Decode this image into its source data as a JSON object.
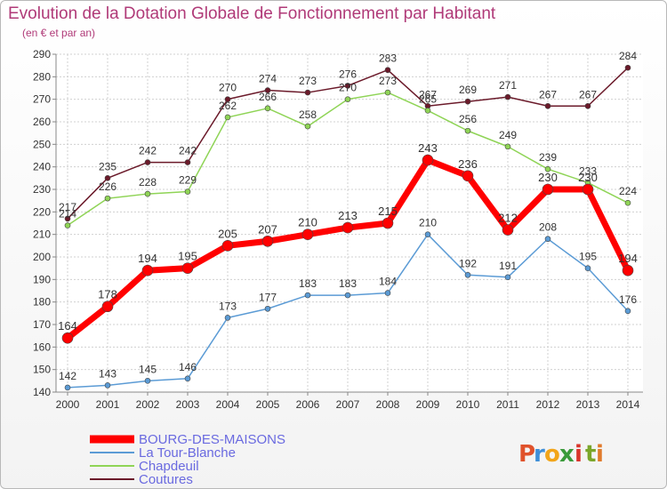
{
  "header": {
    "title": "Evolution de la Dotation Globale de Fonctionnement par Habitant",
    "subtitle": "(en € et par an)"
  },
  "logo": {
    "text": "Proxiti",
    "letters": [
      "P",
      "r",
      "o",
      "x",
      "i",
      "t",
      "i"
    ],
    "colors": [
      "#e0522b",
      "#3f8fd8",
      "#f2a51a",
      "#3a9a3a",
      "#d9342b",
      "#7aa62a",
      "#e07a2b"
    ]
  },
  "chart_data": {
    "type": "line",
    "title": "Evolution de la Dotation Globale de Fonctionnement par Habitant",
    "subtitle": "(en € et par an)",
    "xlabel": "",
    "ylabel": "",
    "ylim": [
      140,
      290
    ],
    "yticks": [
      140,
      150,
      160,
      170,
      180,
      190,
      200,
      210,
      220,
      230,
      240,
      250,
      260,
      270,
      280,
      290
    ],
    "grid": true,
    "categories": [
      "2000",
      "2001",
      "2002",
      "2003",
      "2004",
      "2005",
      "2006",
      "2007",
      "2008",
      "2009",
      "2010",
      "2011",
      "2012",
      "2013",
      "2014"
    ],
    "legend_position": "bottom-left",
    "series": [
      {
        "name": "Coutures",
        "color": "#6b1a2a",
        "values": [
          217,
          235,
          242,
          242,
          270,
          274,
          273,
          276,
          283,
          267,
          269,
          271,
          267,
          267,
          284
        ]
      },
      {
        "name": "Chapdeuil",
        "color": "#8fd456",
        "values": [
          214,
          226,
          228,
          229,
          262,
          266,
          258,
          270,
          273,
          265,
          256,
          249,
          239,
          233,
          224
        ]
      },
      {
        "name": "La Tour-Blanche",
        "color": "#5b9bd5",
        "values": [
          142,
          143,
          145,
          146,
          173,
          177,
          183,
          183,
          184,
          210,
          192,
          191,
          208,
          195,
          176
        ]
      },
      {
        "name": "BOURG-DES-MAISONS",
        "color": "#ff0000",
        "values": [
          164,
          178,
          194,
          195,
          205,
          207,
          210,
          213,
          215,
          243,
          236,
          212,
          230,
          230,
          194
        ]
      }
    ]
  }
}
